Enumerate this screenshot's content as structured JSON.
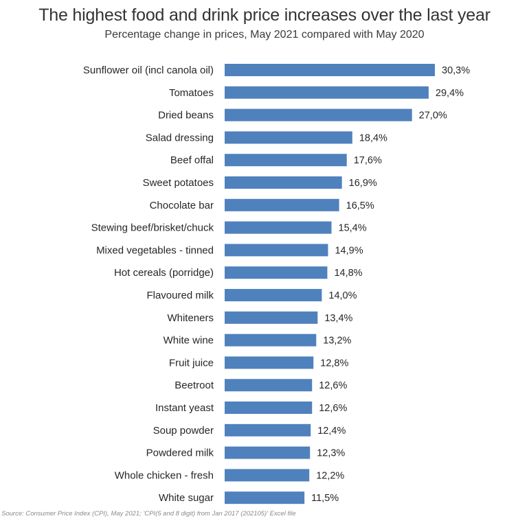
{
  "chart_data": {
    "type": "bar",
    "orientation": "horizontal",
    "title": "The highest food and drink price increases over the last year",
    "subtitle": "Percentage change in prices, May 2021 compared with May 2020",
    "categories": [
      "Sunflower oil (incl canola oil)",
      "Tomatoes",
      "Dried beans",
      "Salad dressing",
      "Beef offal",
      "Sweet potatoes",
      "Chocolate bar",
      "Stewing beef/brisket/chuck",
      "Mixed vegetables - tinned",
      "Hot cereals (porridge)",
      "Flavoured milk",
      "Whiteners",
      "White wine",
      "Fruit juice",
      "Beetroot",
      "Instant yeast",
      "Soup powder",
      "Powdered milk",
      "Whole chicken - fresh",
      "White sugar"
    ],
    "values": [
      30.3,
      29.4,
      27.0,
      18.4,
      17.6,
      16.9,
      16.5,
      15.4,
      14.9,
      14.8,
      14.0,
      13.4,
      13.2,
      12.8,
      12.6,
      12.6,
      12.4,
      12.3,
      12.2,
      11.5
    ],
    "value_labels": [
      "30,3%",
      "29,4%",
      "27,0%",
      "18,4%",
      "17,6%",
      "16,9%",
      "16,5%",
      "15,4%",
      "14,9%",
      "14,8%",
      "14,0%",
      "13,4%",
      "13,2%",
      "12,8%",
      "12,6%",
      "12,6%",
      "12,4%",
      "12,3%",
      "12,2%",
      "11,5%"
    ],
    "xlabel": "",
    "ylabel": "",
    "xlim": [
      0,
      30.3
    ],
    "grid": false,
    "legend": "none",
    "bar_color": "#4f81bd",
    "source": "Source: Consumer Price Index (CPI), May 2021; 'CPI(5 and 8 digit) from Jan 2017 (202105)' Excel file"
  }
}
